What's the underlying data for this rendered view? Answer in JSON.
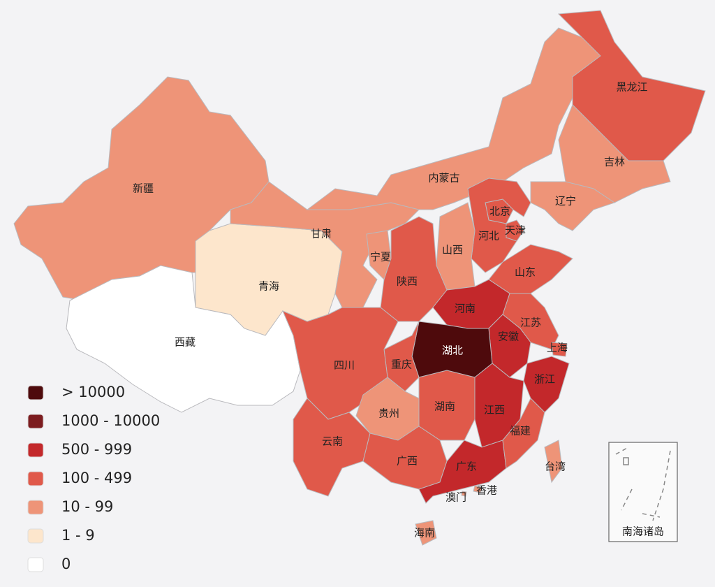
{
  "legend": [
    {
      "label": "> 10000",
      "color": "#4e0a0c"
    },
    {
      "label": "1000 - 10000",
      "color": "#7c1c1f"
    },
    {
      "label": "500 - 999",
      "color": "#c3282b"
    },
    {
      "label": "100 - 499",
      "color": "#e0594a"
    },
    {
      "label": "10 - 99",
      "color": "#ee9478"
    },
    {
      "label": "1 - 9",
      "color": "#fde6cc"
    },
    {
      "label": "0",
      "color": "#ffffff"
    }
  ],
  "provinces": [
    {
      "name": "新疆",
      "color": "#ee9478"
    },
    {
      "name": "西藏",
      "color": "#ffffff"
    },
    {
      "name": "青海",
      "color": "#fde6cc"
    },
    {
      "name": "甘肃",
      "color": "#ee9478"
    },
    {
      "name": "内蒙古",
      "color": "#ee9478"
    },
    {
      "name": "黑龙江",
      "color": "#e0594a"
    },
    {
      "name": "吉林",
      "color": "#ee9478"
    },
    {
      "name": "辽宁",
      "color": "#ee9478"
    },
    {
      "name": "北京",
      "color": "#e0594a"
    },
    {
      "name": "天津",
      "color": "#e0594a"
    },
    {
      "name": "河北",
      "color": "#e0594a"
    },
    {
      "name": "山西",
      "color": "#ee9478"
    },
    {
      "name": "宁夏",
      "color": "#ee9478"
    },
    {
      "name": "陕西",
      "color": "#e0594a"
    },
    {
      "name": "山东",
      "color": "#e0594a"
    },
    {
      "name": "河南",
      "color": "#c3282b"
    },
    {
      "name": "江苏",
      "color": "#e0594a"
    },
    {
      "name": "安徽",
      "color": "#c3282b"
    },
    {
      "name": "上海",
      "color": "#e0594a"
    },
    {
      "name": "湖北",
      "color": "#4e0a0c"
    },
    {
      "name": "重庆",
      "color": "#e0594a"
    },
    {
      "name": "四川",
      "color": "#e0594a"
    },
    {
      "name": "浙江",
      "color": "#c3282b"
    },
    {
      "name": "贵州",
      "color": "#ee9478"
    },
    {
      "name": "湖南",
      "color": "#e0594a"
    },
    {
      "name": "江西",
      "color": "#c3282b"
    },
    {
      "name": "云南",
      "color": "#e0594a"
    },
    {
      "name": "广西",
      "color": "#e0594a"
    },
    {
      "name": "广东",
      "color": "#c3282b"
    },
    {
      "name": "福建",
      "color": "#e0594a"
    },
    {
      "name": "台湾",
      "color": "#ee9478"
    },
    {
      "name": "香港",
      "color": "#ee9478"
    },
    {
      "name": "澳门",
      "color": "#ee9478"
    },
    {
      "name": "海南",
      "color": "#ee9478"
    }
  ],
  "inset_label": "南海诸岛"
}
